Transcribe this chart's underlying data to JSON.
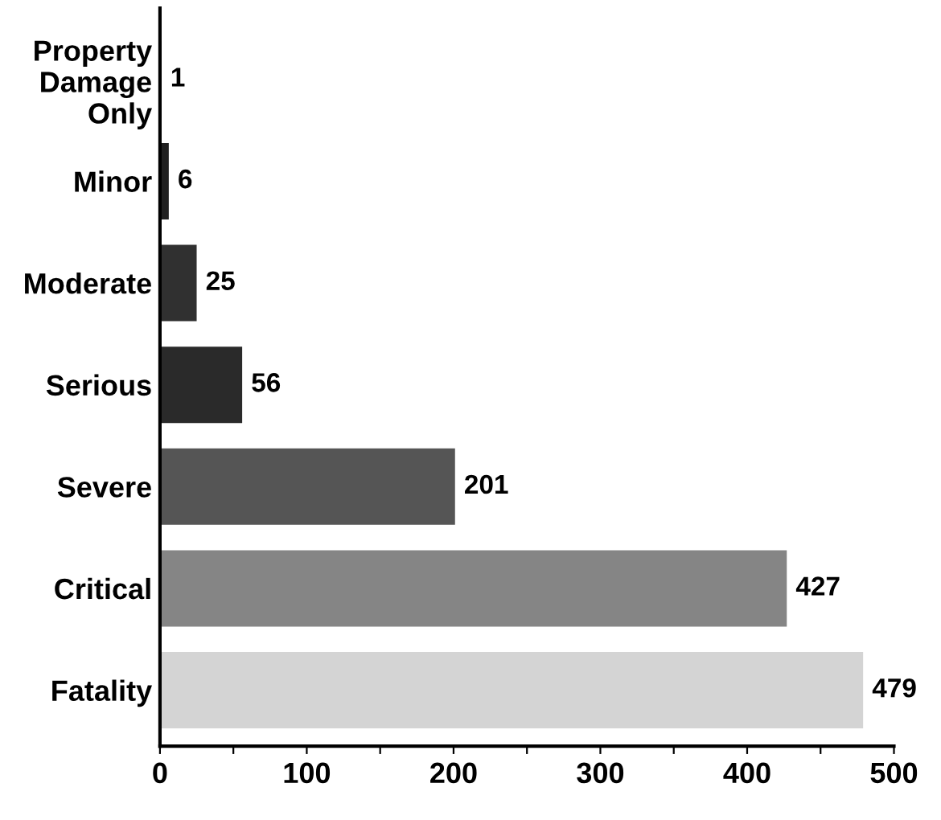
{
  "chart_data": {
    "type": "bar",
    "orientation": "horizontal",
    "categories": [
      "Property\nDamage\nOnly",
      "Minor",
      "Moderate",
      "Serious",
      "Severe",
      "Critical",
      "Fatality"
    ],
    "values": [
      1,
      6,
      25,
      56,
      201,
      427,
      479
    ],
    "colors": [
      "#151515",
      "#202020",
      "#303030",
      "#2a2a2a",
      "#555555",
      "#858585",
      "#d4d4d4"
    ],
    "xlim": [
      0,
      500
    ],
    "xticks": [
      0,
      {
        "value": 50,
        "label": null
      },
      100,
      {
        "value": 150,
        "label": null
      },
      200,
      {
        "value": 250,
        "label": null
      },
      300,
      {
        "value": 350,
        "label": null
      },
      400,
      {
        "value": 450,
        "label": null
      },
      500
    ],
    "data_labels": true,
    "grid": false,
    "legend": false
  }
}
